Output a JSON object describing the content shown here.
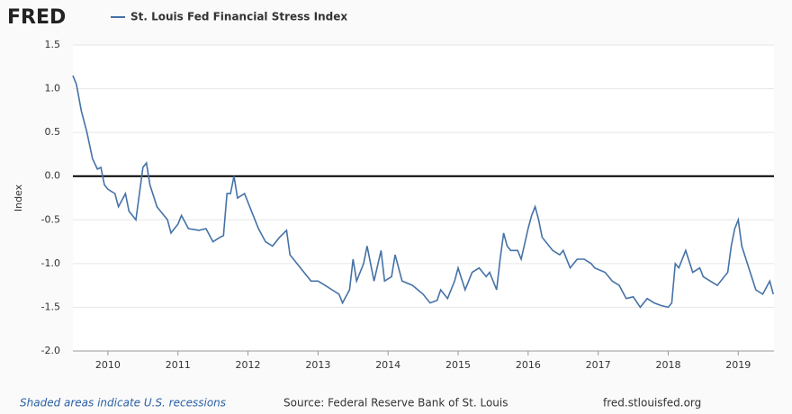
{
  "logo": "FRED",
  "chart_data": {
    "type": "line",
    "series": [
      {
        "name": "St. Louis Fed Financial Stress Index",
        "color": "#4572a7",
        "x": [
          2009.5,
          2009.55,
          2009.62,
          2009.7,
          2009.78,
          2009.85,
          2009.9,
          2009.95,
          2010.0,
          2010.1,
          2010.15,
          2010.25,
          2010.3,
          2010.4,
          2010.45,
          2010.5,
          2010.55,
          2010.6,
          2010.7,
          2010.75,
          2010.85,
          2010.9,
          2011.0,
          2011.05,
          2011.15,
          2011.3,
          2011.4,
          2011.5,
          2011.6,
          2011.65,
          2011.7,
          2011.75,
          2011.8,
          2011.85,
          2011.95,
          2012.05,
          2012.15,
          2012.25,
          2012.35,
          2012.45,
          2012.55,
          2012.6,
          2012.7,
          2012.8,
          2012.9,
          2013.0,
          2013.1,
          2013.2,
          2013.3,
          2013.35,
          2013.45,
          2013.5,
          2013.55,
          2013.65,
          2013.7,
          2013.8,
          2013.9,
          2013.95,
          2014.05,
          2014.1,
          2014.2,
          2014.35,
          2014.5,
          2014.6,
          2014.7,
          2014.75,
          2014.85,
          2014.95,
          2015.0,
          2015.1,
          2015.2,
          2015.3,
          2015.4,
          2015.45,
          2015.55,
          2015.6,
          2015.65,
          2015.7,
          2015.75,
          2015.85,
          2015.9,
          2016.0,
          2016.05,
          2016.1,
          2016.15,
          2016.2,
          2016.35,
          2016.45,
          2016.5,
          2016.6,
          2016.7,
          2016.8,
          2016.9,
          2016.95,
          2017.1,
          2017.2,
          2017.3,
          2017.4,
          2017.5,
          2017.6,
          2017.7,
          2017.8,
          2017.9,
          2018.0,
          2018.05,
          2018.1,
          2018.15,
          2018.25,
          2018.35,
          2018.45,
          2018.5,
          2018.6,
          2018.7,
          2018.85,
          2018.9,
          2018.95,
          2019.0,
          2019.05,
          2019.15,
          2019.25,
          2019.35,
          2019.45,
          2019.5
        ],
        "values": [
          1.15,
          1.05,
          0.75,
          0.5,
          0.2,
          0.08,
          0.1,
          -0.1,
          -0.15,
          -0.2,
          -0.35,
          -0.2,
          -0.4,
          -0.5,
          -0.2,
          0.1,
          0.15,
          -0.1,
          -0.35,
          -0.4,
          -0.5,
          -0.65,
          -0.55,
          -0.45,
          -0.6,
          -0.62,
          -0.6,
          -0.75,
          -0.7,
          -0.68,
          -0.2,
          -0.2,
          0.0,
          -0.25,
          -0.2,
          -0.4,
          -0.6,
          -0.75,
          -0.8,
          -0.7,
          -0.62,
          -0.9,
          -1.0,
          -1.1,
          -1.2,
          -1.2,
          -1.25,
          -1.3,
          -1.35,
          -1.45,
          -1.3,
          -0.95,
          -1.2,
          -1.0,
          -0.8,
          -1.2,
          -0.85,
          -1.2,
          -1.15,
          -0.9,
          -1.2,
          -1.25,
          -1.35,
          -1.45,
          -1.42,
          -1.3,
          -1.4,
          -1.2,
          -1.05,
          -1.3,
          -1.1,
          -1.05,
          -1.15,
          -1.1,
          -1.3,
          -0.95,
          -0.65,
          -0.8,
          -0.85,
          -0.85,
          -0.95,
          -0.6,
          -0.45,
          -0.35,
          -0.5,
          -0.7,
          -0.85,
          -0.9,
          -0.85,
          -1.05,
          -0.95,
          -0.95,
          -1.0,
          -1.05,
          -1.1,
          -1.2,
          -1.25,
          -1.4,
          -1.38,
          -1.5,
          -1.4,
          -1.45,
          -1.48,
          -1.5,
          -1.45,
          -1.0,
          -1.05,
          -0.85,
          -1.1,
          -1.05,
          -1.15,
          -1.2,
          -1.25,
          -1.1,
          -0.8,
          -0.6,
          -0.5,
          -0.8,
          -1.05,
          -1.3,
          -1.35,
          -1.2,
          -1.35
        ]
      }
    ],
    "ylabel": "Index",
    "xlim": [
      2009.5,
      2019.51
    ],
    "xticks": [
      2010,
      2011,
      2012,
      2013,
      2014,
      2015,
      2016,
      2017,
      2018,
      2019
    ],
    "ylim": [
      -2.0,
      1.5
    ],
    "yticks": [
      {
        "value": -2.0,
        "label": "-2.0"
      },
      -1.5,
      {
        "value": -1.0,
        "label": "-1.0"
      },
      -0.5,
      {
        "value": 0.0,
        "label": "0.0"
      },
      0.5,
      {
        "value": 1.0,
        "label": "1.0"
      },
      1.5
    ],
    "grid": true
  },
  "footer": {
    "recessions": "Shaded areas indicate U.S. recessions",
    "source": "Source: Federal Reserve Bank of St. Louis",
    "site": "fred.stlouisfed.org"
  }
}
